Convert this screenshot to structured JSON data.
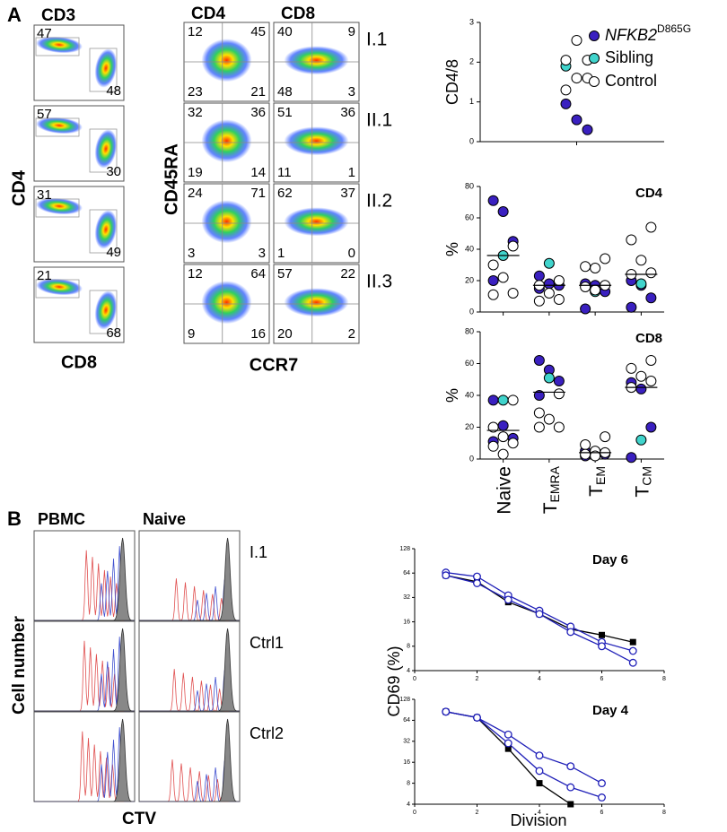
{
  "panel_a": {
    "label": "A",
    "cd3": {
      "title": "CD3",
      "y_label": "CD4",
      "x_label": "CD8",
      "plots": [
        [
          47,
          48
        ],
        [
          57,
          30
        ],
        [
          31,
          49
        ],
        [
          21,
          68
        ]
      ]
    },
    "quadrant": {
      "titles": [
        "CD4",
        "CD8"
      ],
      "y_label": "CD45RA",
      "x_label": "CCR7",
      "rows": [
        {
          "label": "I.1",
          "cd4": [
            12,
            45,
            23,
            21
          ],
          "cd8": [
            40,
            9,
            48,
            3
          ]
        },
        {
          "label": "II.1",
          "cd4": [
            32,
            36,
            19,
            14
          ],
          "cd8": [
            51,
            36,
            11,
            1
          ]
        },
        {
          "label": "II.2",
          "cd4": [
            24,
            71,
            3,
            3
          ],
          "cd8": [
            62,
            37,
            1,
            0
          ]
        },
        {
          "label": "II.3",
          "cd4": [
            12,
            64,
            9,
            16
          ],
          "cd8": [
            57,
            22,
            20,
            2
          ]
        }
      ]
    }
  },
  "panel_b": {
    "label": "B",
    "columns": [
      "PBMC",
      "Naive"
    ],
    "rows": [
      "I.1",
      "Ctrl1",
      "Ctrl2"
    ],
    "y_label": "Cell number",
    "x_label": "CTV",
    "chart_y_label": "CD69 (%)",
    "chart_x_label": "Division"
  },
  "chart_data": [
    {
      "type": "strip",
      "y_label": "CD4/8",
      "ylim": [
        0,
        3
      ],
      "yticks": [
        0,
        1,
        2,
        3
      ],
      "series": [
        {
          "name": "NFKB2",
          "name_sup": "D865G",
          "color": "#3a20c0",
          "values": [
            0.95,
            0.55,
            0.3
          ]
        },
        {
          "name": "Sibling",
          "color": "#40d4cc",
          "values": [
            1.9
          ]
        },
        {
          "name": "Control",
          "color": "#ffffff",
          "values": [
            2.55,
            2.05,
            2.05,
            1.6,
            1.6,
            1.3
          ]
        }
      ]
    },
    {
      "type": "strip",
      "title": "CD4",
      "y_label": "%",
      "ylim": [
        0,
        80
      ],
      "yticks": [
        0,
        20,
        40,
        60,
        80
      ],
      "categories": [
        [
          "Naive"
        ],
        [
          "T",
          "EMRA"
        ],
        [
          "T",
          "EM"
        ],
        [
          "T",
          "CM"
        ]
      ],
      "medians": [
        36,
        17,
        17,
        24
      ],
      "series": [
        {
          "name": "NFKB2",
          "color": "#3a20c0",
          "values": [
            [
              71,
              64,
              45,
              20
            ],
            [
              23,
              18,
              17,
              15
            ],
            [
              18,
              17,
              13,
              2
            ],
            [
              20,
              17,
              9,
              3
            ]
          ]
        },
        {
          "name": "Sibling",
          "color": "#40d4cc",
          "values": [
            [
              36
            ],
            [
              31
            ],
            [
              13
            ],
            [
              18
            ]
          ]
        },
        {
          "name": "Control",
          "color": "#ffffff",
          "values": [
            [
              42,
              30,
              22,
              12,
              11
            ],
            [
              20,
              17,
              12,
              8,
              7
            ],
            [
              34,
              29,
              28,
              17,
              16,
              14
            ],
            [
              54,
              46,
              33,
              25,
              24
            ]
          ]
        }
      ]
    },
    {
      "type": "strip",
      "title": "CD8",
      "y_label": "%",
      "ylim": [
        0,
        80
      ],
      "yticks": [
        0,
        20,
        40,
        60,
        80
      ],
      "categories": [
        [
          "Naive"
        ],
        [
          "T",
          "EMRA"
        ],
        [
          "T",
          "EM"
        ],
        [
          "T",
          "CM"
        ]
      ],
      "medians": [
        18,
        42,
        4,
        45
      ],
      "series": [
        {
          "name": "NFKB2",
          "color": "#3a20c0",
          "values": [
            [
              37,
              21,
              13,
              11
            ],
            [
              62,
              56,
              49,
              40
            ],
            [
              5,
              3,
              3,
              2
            ],
            [
              48,
              44,
              20,
              1
            ]
          ]
        },
        {
          "name": "Sibling",
          "color": "#40d4cc",
          "values": [
            [
              37
            ],
            [
              51
            ],
            [
              4
            ],
            [
              12
            ]
          ]
        },
        {
          "name": "Control",
          "color": "#ffffff",
          "values": [
            [
              37,
              20,
              14,
              10,
              8,
              3
            ],
            [
              41,
              29,
              25,
              20,
              20
            ],
            [
              14,
              9,
              5,
              4,
              3,
              2
            ],
            [
              62,
              57,
              52,
              49,
              45
            ]
          ]
        }
      ]
    },
    {
      "type": "line",
      "title": "Day 6",
      "log_base": 2,
      "xlim": [
        0,
        8
      ],
      "xticks": [
        0,
        2,
        4,
        6,
        8
      ],
      "ylim": [
        4,
        128
      ],
      "yticks": [
        4,
        8,
        16,
        32,
        64,
        128
      ],
      "series": [
        {
          "color": "#000000",
          "marker": "square",
          "x": [
            1,
            2,
            3,
            4,
            5,
            6,
            7
          ],
          "values": [
            60,
            50,
            28,
            20,
            13,
            11,
            9
          ]
        },
        {
          "color": "#1f1fb8",
          "marker": "circle",
          "x": [
            1,
            2,
            3,
            4,
            5,
            6,
            7
          ],
          "values": [
            65,
            58,
            34,
            22,
            14,
            9,
            7
          ]
        },
        {
          "color": "#1f1fb8",
          "marker": "circle",
          "x": [
            1,
            2,
            3,
            4,
            5,
            6,
            7
          ],
          "values": [
            60,
            48,
            30,
            20,
            12,
            8,
            5
          ]
        }
      ]
    },
    {
      "type": "line",
      "title": "Day 4",
      "log_base": 2,
      "xlim": [
        0,
        8
      ],
      "xticks": [
        0,
        2,
        4,
        6,
        8
      ],
      "ylim": [
        4,
        128
      ],
      "yticks": [
        4,
        8,
        16,
        32,
        64,
        128
      ],
      "series": [
        {
          "color": "#000000",
          "marker": "square",
          "x": [
            1,
            2,
            3,
            4,
            5
          ],
          "values": [
            85,
            70,
            25,
            8,
            4
          ]
        },
        {
          "color": "#1f1fb8",
          "marker": "circle",
          "x": [
            1,
            2,
            3,
            4,
            5,
            6
          ],
          "values": [
            85,
            70,
            40,
            20,
            14,
            8
          ]
        },
        {
          "color": "#1f1fb8",
          "marker": "circle",
          "x": [
            1,
            2,
            3,
            4,
            5,
            6
          ],
          "values": [
            85,
            70,
            30,
            12,
            7,
            5
          ]
        }
      ]
    }
  ]
}
